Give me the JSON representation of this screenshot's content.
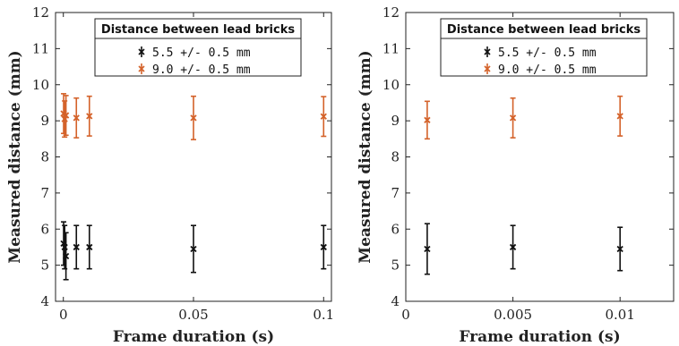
{
  "chart_data": [
    {
      "type": "scatter",
      "xlabel": "Frame duration (s)",
      "ylabel": "Measured distance (mm)",
      "xlim": [
        -0.003,
        0.103
      ],
      "ylim": [
        4,
        12
      ],
      "xticks": [
        0,
        0.05,
        0.1
      ],
      "xtick_labels": [
        "0",
        "0.05",
        "0.1"
      ],
      "yticks": [
        4,
        5,
        6,
        7,
        8,
        9,
        10,
        11,
        12
      ],
      "yticks_labels": [
        "4",
        "5",
        "6",
        "7",
        "8",
        "9",
        "10",
        "11",
        "12"
      ],
      "legend": {
        "title": "Distance between lead bricks",
        "placement": "top-center",
        "entries": [
          "5.5 +/- 0.5 mm",
          "9.0 +/- 0.5 mm"
        ]
      },
      "series": [
        {
          "name": "5.5 +/- 0.5 mm",
          "color": "#111111",
          "marker": "x",
          "x": [
            0.0001,
            0.0005,
            0.001,
            0.005,
            0.01,
            0.05,
            0.1
          ],
          "y": [
            5.6,
            5.5,
            5.25,
            5.5,
            5.5,
            5.45,
            5.5
          ],
          "err": [
            0.6,
            0.6,
            0.65,
            0.6,
            0.6,
            0.65,
            0.6
          ]
        },
        {
          "name": "9.0 +/- 0.5 mm",
          "color": "#d4622a",
          "marker": "x",
          "x": [
            0.0001,
            0.0005,
            0.001,
            0.005,
            0.01,
            0.05,
            0.1
          ],
          "y": [
            9.2,
            9.05,
            9.15,
            9.08,
            9.13,
            9.08,
            9.12
          ],
          "err": [
            0.55,
            0.5,
            0.55,
            0.55,
            0.55,
            0.6,
            0.55
          ]
        }
      ]
    },
    {
      "type": "scatter",
      "xlabel": "Frame duration (s)",
      "ylabel": "Measured distance (mm)",
      "xlim": [
        0,
        0.0125
      ],
      "ylim": [
        4,
        12
      ],
      "xticks": [
        0,
        0.005,
        0.01
      ],
      "xtick_labels": [
        "0",
        "0.005",
        "0.01"
      ],
      "yticks": [
        4,
        5,
        6,
        7,
        8,
        9,
        10,
        11,
        12
      ],
      "yticks_labels": [
        "4",
        "5",
        "6",
        "7",
        "8",
        "9",
        "10",
        "11",
        "12"
      ],
      "legend": {
        "title": "Distance between lead bricks",
        "placement": "top-center",
        "entries": [
          "5.5 +/- 0.5 mm",
          "9.0 +/- 0.5 mm"
        ]
      },
      "series": [
        {
          "name": "5.5 +/- 0.5 mm",
          "color": "#111111",
          "marker": "x",
          "x": [
            0.001,
            0.005,
            0.01
          ],
          "y": [
            5.45,
            5.5,
            5.45
          ],
          "err": [
            0.7,
            0.6,
            0.6
          ]
        },
        {
          "name": "9.0 +/- 0.5 mm",
          "color": "#d4622a",
          "marker": "x",
          "x": [
            0.001,
            0.005,
            0.01
          ],
          "y": [
            9.02,
            9.08,
            9.13
          ],
          "err": [
            0.52,
            0.55,
            0.55
          ]
        }
      ]
    }
  ]
}
